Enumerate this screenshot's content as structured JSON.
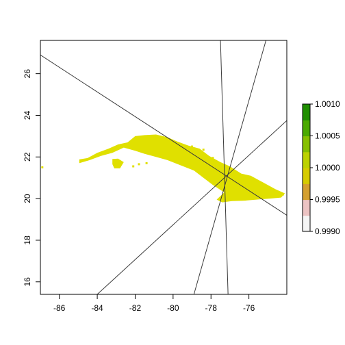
{
  "chart_data": {
    "type": "heatmap",
    "title": "",
    "xlabel": "",
    "ylabel": "",
    "xlim": [
      -87,
      -74
    ],
    "ylim": [
      15.4,
      27.6
    ],
    "x_ticks": [
      {
        "value": -86,
        "label": "-86"
      },
      {
        "value": -84,
        "label": "-84"
      },
      {
        "value": -82,
        "label": "-82"
      },
      {
        "value": -80,
        "label": "-80"
      },
      {
        "value": -78,
        "label": "-78"
      },
      {
        "value": -76,
        "label": "-76"
      }
    ],
    "y_ticks": [
      {
        "value": 16,
        "label": "16"
      },
      {
        "value": 18,
        "label": "18"
      },
      {
        "value": 20,
        "label": "20"
      },
      {
        "value": 22,
        "label": "22"
      },
      {
        "value": 24,
        "label": "24"
      },
      {
        "value": 26,
        "label": "26"
      }
    ],
    "raster": {
      "value": 1.0,
      "color": "#e0e000",
      "outline": [
        [
          -84.95,
          21.88
        ],
        [
          -84.5,
          21.95
        ],
        [
          -84.0,
          22.2
        ],
        [
          -83.4,
          22.4
        ],
        [
          -82.9,
          22.6
        ],
        [
          -82.4,
          22.7
        ],
        [
          -82.0,
          23.0
        ],
        [
          -81.5,
          23.05
        ],
        [
          -80.9,
          23.08
        ],
        [
          -80.3,
          22.95
        ],
        [
          -79.8,
          22.75
        ],
        [
          -79.2,
          22.55
        ],
        [
          -78.6,
          22.4
        ],
        [
          -78.1,
          22.05
        ],
        [
          -77.5,
          21.75
        ],
        [
          -77.0,
          21.55
        ],
        [
          -76.4,
          21.2
        ],
        [
          -75.9,
          21.1
        ],
        [
          -75.3,
          20.8
        ],
        [
          -74.6,
          20.45
        ],
        [
          -74.1,
          20.25
        ],
        [
          -74.3,
          20.05
        ],
        [
          -74.9,
          20.0
        ],
        [
          -75.6,
          19.95
        ],
        [
          -76.3,
          19.9
        ],
        [
          -76.9,
          19.88
        ],
        [
          -77.4,
          19.82
        ],
        [
          -77.7,
          19.95
        ],
        [
          -77.3,
          20.3
        ],
        [
          -77.9,
          20.65
        ],
        [
          -78.4,
          21.0
        ],
        [
          -78.9,
          21.35
        ],
        [
          -79.6,
          21.6
        ],
        [
          -80.3,
          21.85
        ],
        [
          -80.9,
          22.0
        ],
        [
          -81.5,
          22.15
        ],
        [
          -82.0,
          22.3
        ],
        [
          -82.6,
          22.45
        ],
        [
          -83.2,
          22.2
        ],
        [
          -83.8,
          22.05
        ],
        [
          -84.4,
          21.85
        ],
        [
          -84.95,
          21.7
        ]
      ],
      "island": [
        [
          -83.2,
          21.9
        ],
        [
          -82.9,
          21.92
        ],
        [
          -82.6,
          21.75
        ],
        [
          -82.8,
          21.45
        ],
        [
          -83.1,
          21.45
        ],
        [
          -83.2,
          21.65
        ]
      ],
      "keys": [
        [
          -82.1,
          21.55
        ],
        [
          -81.8,
          21.65
        ],
        [
          -81.4,
          21.7
        ],
        [
          -80.6,
          22.05
        ],
        [
          -79.5,
          22.4
        ],
        [
          -79.0,
          22.5
        ],
        [
          -78.4,
          22.35
        ],
        [
          -77.9,
          21.95
        ],
        [
          -86.9,
          21.5
        ],
        [
          -76.2,
          19.95
        ],
        [
          -74.2,
          20.2
        ]
      ]
    },
    "lines": [
      [
        [
          -87.0,
          26.9
        ],
        [
          -74.0,
          19.2
        ]
      ],
      [
        [
          -84.0,
          15.4
        ],
        [
          -74.0,
          23.75
        ]
      ],
      [
        [
          -78.9,
          15.4
        ],
        [
          -75.1,
          27.6
        ]
      ],
      [
        [
          -77.1,
          15.4
        ],
        [
          -77.5,
          27.6
        ]
      ]
    ],
    "colorbar": {
      "range": [
        0.999,
        1.001
      ],
      "colors": [
        "#f5f5f5",
        "#ecc3c3",
        "#d4a030",
        "#d6cc00",
        "#bcd200",
        "#86c000",
        "#4aaa00",
        "#1f8f00"
      ],
      "ticks": [
        {
          "value": 1.001,
          "label": "1.0010"
        },
        {
          "value": 1.0005,
          "label": "1.0005"
        },
        {
          "value": 1.0,
          "label": "1.0000"
        },
        {
          "value": 0.9995,
          "label": "0.9995"
        },
        {
          "value": 0.999,
          "label": "0.9990"
        }
      ]
    }
  }
}
